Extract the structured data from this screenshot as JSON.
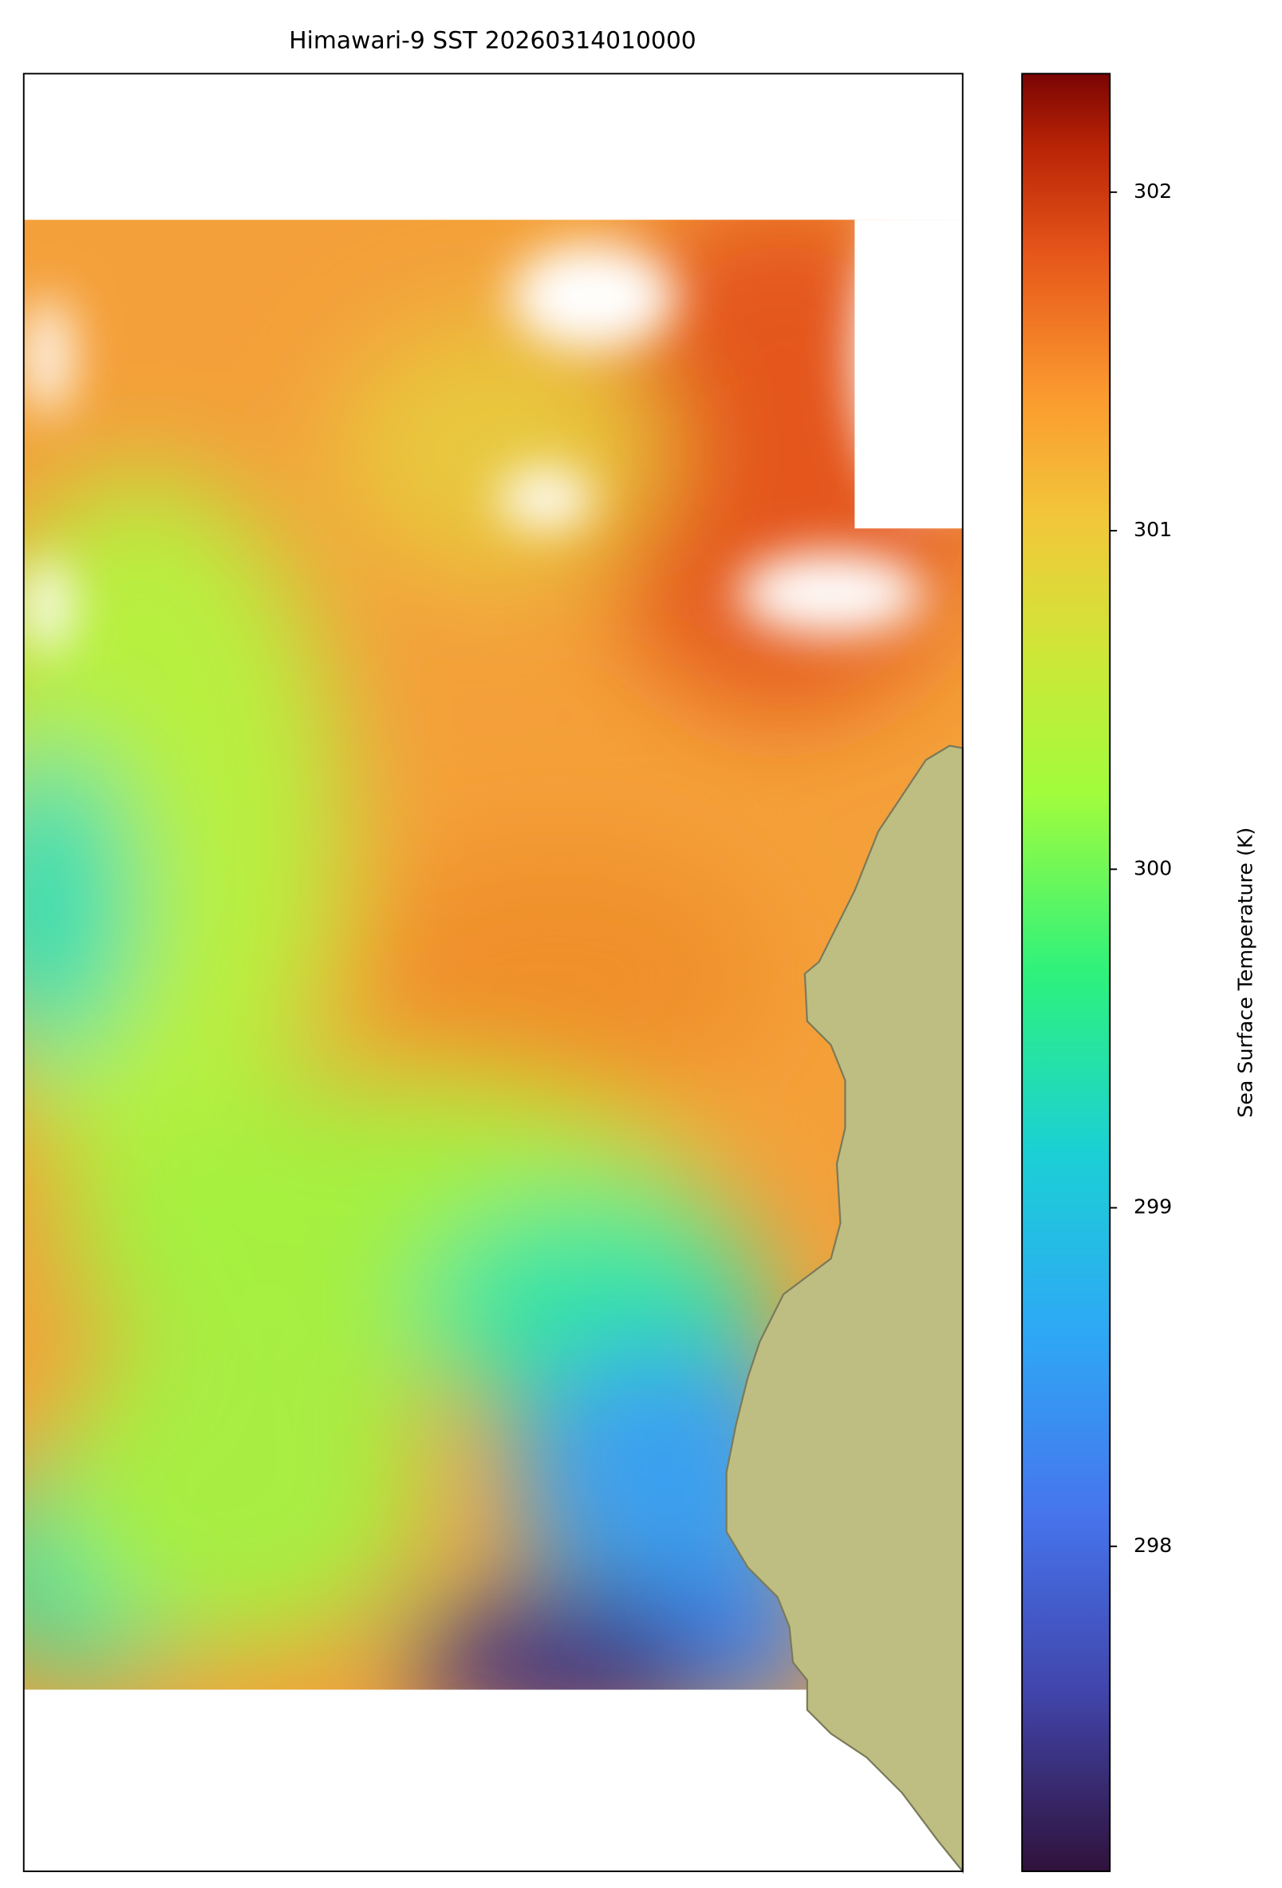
{
  "chart_data": {
    "type": "map",
    "title": "Himawari-9 SST 20260314010000",
    "colorbar": {
      "label": "Sea Surface Temperature (K)",
      "lim": [
        297.04,
        302.35
      ],
      "ticks": [
        298,
        299,
        300,
        301,
        302
      ]
    }
  }
}
